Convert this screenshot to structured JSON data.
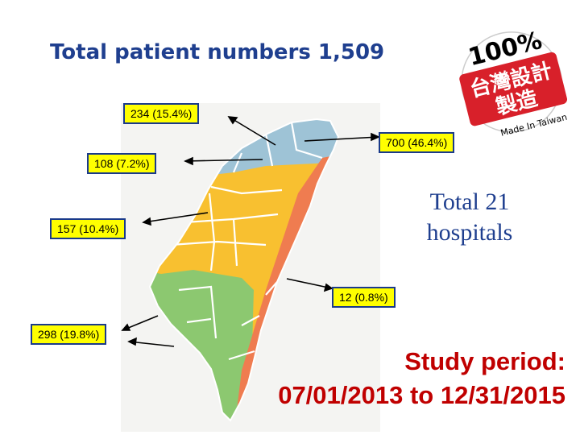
{
  "title": "Total patient numbers 1,509",
  "callouts": [
    {
      "id": "north",
      "label": "234 (15.4%)"
    },
    {
      "id": "northeast",
      "label": "700 (46.4%)"
    },
    {
      "id": "north-west",
      "label": "108 (7.2%)"
    },
    {
      "id": "central",
      "label": "157 (10.4%)"
    },
    {
      "id": "east",
      "label": "12 (0.8%)"
    },
    {
      "id": "south",
      "label": "298 (19.8%)"
    }
  ],
  "total_hospitals": {
    "line1": "Total 21",
    "line2": "hospitals"
  },
  "study_period": {
    "line1": "Study period:",
    "line2": "07/01/2013 to 12/31/2015"
  },
  "badge": {
    "percent": "100%",
    "chars_line1": "台灣設計",
    "chars_line2": "製造",
    "made_in": "Made In Taiwan"
  },
  "colors": {
    "north_region": "#9ec3d6",
    "central_region": "#f8c030",
    "south_region": "#8cc870",
    "east_region": "#ef7c50",
    "callout_bg": "#ffff00",
    "title": "#1f3f8f",
    "study": "#c00000",
    "badge_red": "#d8202a"
  }
}
